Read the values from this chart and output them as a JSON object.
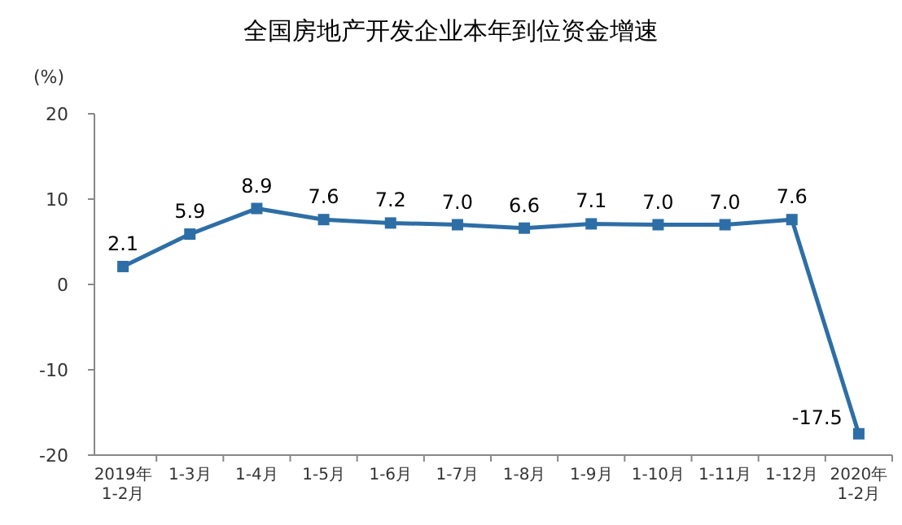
{
  "chart_data": {
    "type": "line",
    "title": "全国房地产开发企业本年到位资金增速",
    "ylabel": "(%)",
    "categories": [
      "2019年\n1-2月",
      "1-3月",
      "1-4月",
      "1-5月",
      "1-6月",
      "1-7月",
      "1-8月",
      "1-9月",
      "1-10月",
      "1-11月",
      "1-12月",
      "2020年\n1-2月"
    ],
    "values": [
      2.1,
      5.9,
      8.9,
      7.6,
      7.2,
      7.0,
      6.6,
      7.1,
      7.0,
      7.0,
      7.6,
      -17.5
    ],
    "color": "#2e6ea6",
    "ylim": [
      -20,
      20
    ],
    "yticks": [
      -20,
      -10,
      0,
      10,
      20
    ],
    "marker": "square",
    "value_labels": [
      "2.1",
      "5.9",
      "8.9",
      "7.6",
      "7.2",
      "7.0",
      "6.6",
      "7.1",
      "7.0",
      "7.0",
      "7.6",
      "-17.5"
    ]
  }
}
